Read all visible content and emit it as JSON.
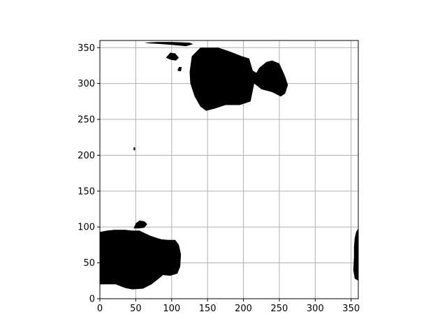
{
  "chart_data": {
    "type": "heatmap",
    "title": "",
    "xlabel": "",
    "ylabel": "",
    "xlim": [
      0,
      360
    ],
    "ylim": [
      0,
      360
    ],
    "xticks": [
      0,
      50,
      100,
      150,
      200,
      250,
      300,
      350
    ],
    "yticks": [
      0,
      50,
      100,
      150,
      200,
      250,
      300,
      350
    ],
    "grid": true,
    "colors": {
      "mask": "#000000",
      "background": "#ffffff",
      "grid": "#b0b0b0"
    },
    "regions": [
      {
        "name": "region-top-center",
        "points": [
          [
            125,
            316
          ],
          [
            128,
            338
          ],
          [
            140,
            350
          ],
          [
            165,
            350
          ],
          [
            180,
            345
          ],
          [
            198,
            338
          ],
          [
            208,
            335
          ],
          [
            213,
            318
          ],
          [
            218,
            315
          ],
          [
            222,
            322
          ],
          [
            232,
            330
          ],
          [
            240,
            332
          ],
          [
            250,
            328
          ],
          [
            258,
            310
          ],
          [
            262,
            298
          ],
          [
            258,
            286
          ],
          [
            252,
            282
          ],
          [
            240,
            288
          ],
          [
            225,
            292
          ],
          [
            215,
            300
          ],
          [
            210,
            275
          ],
          [
            195,
            270
          ],
          [
            175,
            270
          ],
          [
            160,
            265
          ],
          [
            148,
            262
          ],
          [
            140,
            268
          ],
          [
            132,
            282
          ],
          [
            126,
            300
          ]
        ]
      },
      {
        "name": "region-top-left-band",
        "points": [
          [
            62,
            357
          ],
          [
            80,
            358
          ],
          [
            100,
            358
          ],
          [
            125,
            357
          ],
          [
            130,
            355
          ],
          [
            120,
            352
          ],
          [
            100,
            354
          ],
          [
            85,
            355
          ],
          [
            68,
            356
          ]
        ]
      },
      {
        "name": "region-top-left-patch",
        "points": [
          [
            92,
            336
          ],
          [
            98,
            343
          ],
          [
            105,
            342
          ],
          [
            110,
            336
          ],
          [
            106,
            332
          ],
          [
            99,
            333
          ]
        ]
      },
      {
        "name": "region-top-left-speck",
        "points": [
          [
            108,
            318
          ],
          [
            110,
            323
          ],
          [
            114,
            323
          ],
          [
            113,
            317
          ]
        ]
      },
      {
        "name": "region-bottom-left",
        "points": [
          [
            0,
            93
          ],
          [
            10,
            95
          ],
          [
            20,
            96
          ],
          [
            35,
            96
          ],
          [
            45,
            95
          ],
          [
            55,
            95
          ],
          [
            70,
            88
          ],
          [
            85,
            83
          ],
          [
            95,
            82
          ],
          [
            105,
            82
          ],
          [
            110,
            75
          ],
          [
            113,
            62
          ],
          [
            112,
            45
          ],
          [
            108,
            35
          ],
          [
            98,
            32
          ],
          [
            88,
            33
          ],
          [
            82,
            28
          ],
          [
            72,
            20
          ],
          [
            60,
            14
          ],
          [
            45,
            13
          ],
          [
            35,
            15
          ],
          [
            22,
            20
          ],
          [
            10,
            20
          ],
          [
            0,
            20
          ]
        ]
      },
      {
        "name": "region-bottom-left-patch",
        "points": [
          [
            47,
            98
          ],
          [
            50,
            105
          ],
          [
            55,
            109
          ],
          [
            62,
            108
          ],
          [
            66,
            104
          ],
          [
            62,
            99
          ],
          [
            55,
            98
          ]
        ]
      },
      {
        "name": "region-right-edge",
        "points": [
          [
            360,
            98
          ],
          [
            360,
            25
          ],
          [
            355,
            28
          ],
          [
            353,
            40
          ],
          [
            354,
            58
          ],
          [
            354,
            72
          ],
          [
            355,
            85
          ],
          [
            357,
            93
          ]
        ]
      },
      {
        "name": "region-small-dot",
        "points": [
          [
            47,
            207
          ],
          [
            47,
            211
          ],
          [
            49,
            211
          ],
          [
            49,
            207
          ]
        ]
      }
    ]
  }
}
